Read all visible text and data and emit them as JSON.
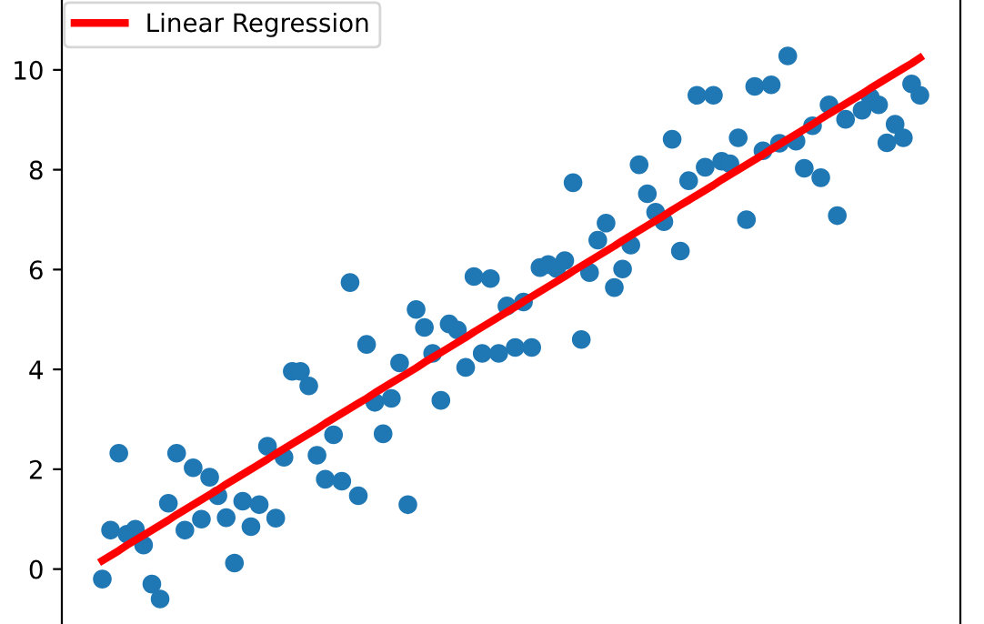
{
  "chart_data": {
    "type": "scatter",
    "categories": [
      null,
      null,
      null,
      null,
      null,
      null,
      null,
      null,
      null,
      null,
      null,
      null,
      null,
      null,
      null,
      null,
      null,
      null,
      null,
      null,
      null,
      null,
      null,
      null,
      null,
      null,
      null,
      null,
      null,
      null,
      null,
      null,
      null,
      null,
      null,
      null,
      null,
      null,
      null,
      null,
      null,
      null,
      null,
      null,
      null,
      null,
      null,
      null,
      null,
      null,
      null,
      null,
      null,
      null,
      null,
      null,
      null,
      null,
      null,
      null,
      null,
      null,
      null,
      null,
      null,
      null,
      null,
      null,
      null,
      null,
      null,
      null,
      null,
      null,
      null,
      null,
      null,
      null,
      null,
      null,
      null,
      null,
      null,
      null,
      null,
      null,
      null,
      null,
      null,
      null,
      null,
      null,
      null,
      null,
      null,
      null,
      null,
      null,
      null,
      null
    ],
    "series": [
      {
        "color": "#1f77b4",
        "values": [
          -0.2,
          0.78,
          2.32,
          0.7,
          0.8,
          0.48,
          -0.3,
          -0.6,
          1.32,
          2.32,
          0.78,
          2.03,
          1.0,
          1.84,
          1.47,
          1.03,
          0.12,
          1.36,
          0.85,
          1.29,
          2.46,
          1.02,
          2.24,
          3.96,
          3.96,
          3.67,
          2.28,
          1.8,
          2.69,
          1.76,
          5.74,
          1.47,
          4.5,
          3.34,
          2.71,
          3.42,
          4.13,
          1.29,
          5.2,
          4.84,
          4.32,
          3.38,
          4.91,
          4.79,
          4.04,
          5.86,
          4.32,
          5.82,
          4.32,
          5.27,
          4.44,
          5.35,
          4.44,
          6.04,
          6.1,
          6.02,
          6.18,
          7.74,
          4.6,
          5.94,
          6.59,
          6.93,
          5.64,
          6.01,
          6.49,
          8.1,
          7.52,
          7.15,
          6.96,
          8.61,
          6.37,
          7.78,
          9.49,
          8.05,
          9.49,
          8.17,
          8.12,
          8.64,
          7.0,
          9.67,
          8.38,
          9.7,
          8.53,
          10.28,
          8.57,
          8.03,
          8.88,
          7.84,
          9.3,
          7.08,
          9.01,
          null,
          9.19,
          9.45,
          9.3,
          8.54,
          8.91,
          8.64,
          9.72,
          9.49
        ]
      },
      {
        "type": "line",
        "marker": "none",
        "name": "Linear Regression",
        "color": "#ff0000",
        "values": [
          0.17,
          0.27,
          0.37,
          0.48,
          0.58,
          0.68,
          0.78,
          0.88,
          0.98,
          1.09,
          1.19,
          1.29,
          1.39,
          1.49,
          1.59,
          1.7,
          1.8,
          1.9,
          2.0,
          2.1,
          2.2,
          2.31,
          2.41,
          2.51,
          2.61,
          2.71,
          2.81,
          2.92,
          3.02,
          3.12,
          3.22,
          3.32,
          3.42,
          3.53,
          3.63,
          3.73,
          3.83,
          3.93,
          4.03,
          4.14,
          4.24,
          4.34,
          4.44,
          4.54,
          4.64,
          4.75,
          4.85,
          4.95,
          5.05,
          5.15,
          5.25,
          5.36,
          5.46,
          5.56,
          5.66,
          5.76,
          5.86,
          5.97,
          6.07,
          6.17,
          6.27,
          6.37,
          6.47,
          6.58,
          6.68,
          6.78,
          6.88,
          6.98,
          7.08,
          7.19,
          7.29,
          7.39,
          7.49,
          7.59,
          7.69,
          7.8,
          7.9,
          8.0,
          8.1,
          8.2,
          8.3,
          8.41,
          8.51,
          8.61,
          8.71,
          8.81,
          8.91,
          9.02,
          9.12,
          9.22,
          9.32,
          9.42,
          9.52,
          9.63,
          9.73,
          9.83,
          9.93,
          10.03,
          10.13,
          10.24
        ]
      }
    ],
    "ylim": [
      -1.1,
      11.4
    ],
    "yticks": [
      0,
      2,
      4,
      6,
      8,
      10
    ],
    "tick_labels": "y",
    "legend": "top left",
    "grid": false,
    "marker": "circle"
  }
}
